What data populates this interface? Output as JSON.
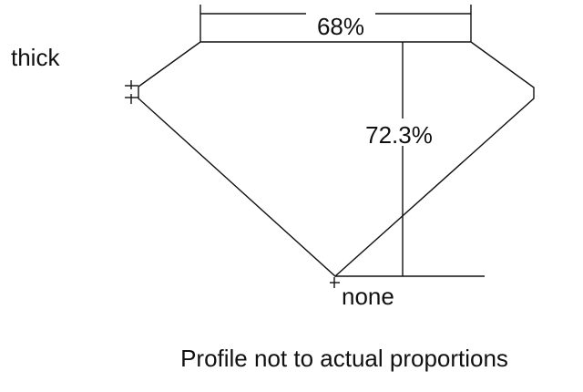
{
  "labels": {
    "girdle": "thick",
    "table": "68%",
    "depth": "72.3%",
    "culet": "none",
    "caption": "Profile not to actual proportions"
  },
  "colors": {
    "line": "#111111",
    "background": "#ffffff"
  }
}
